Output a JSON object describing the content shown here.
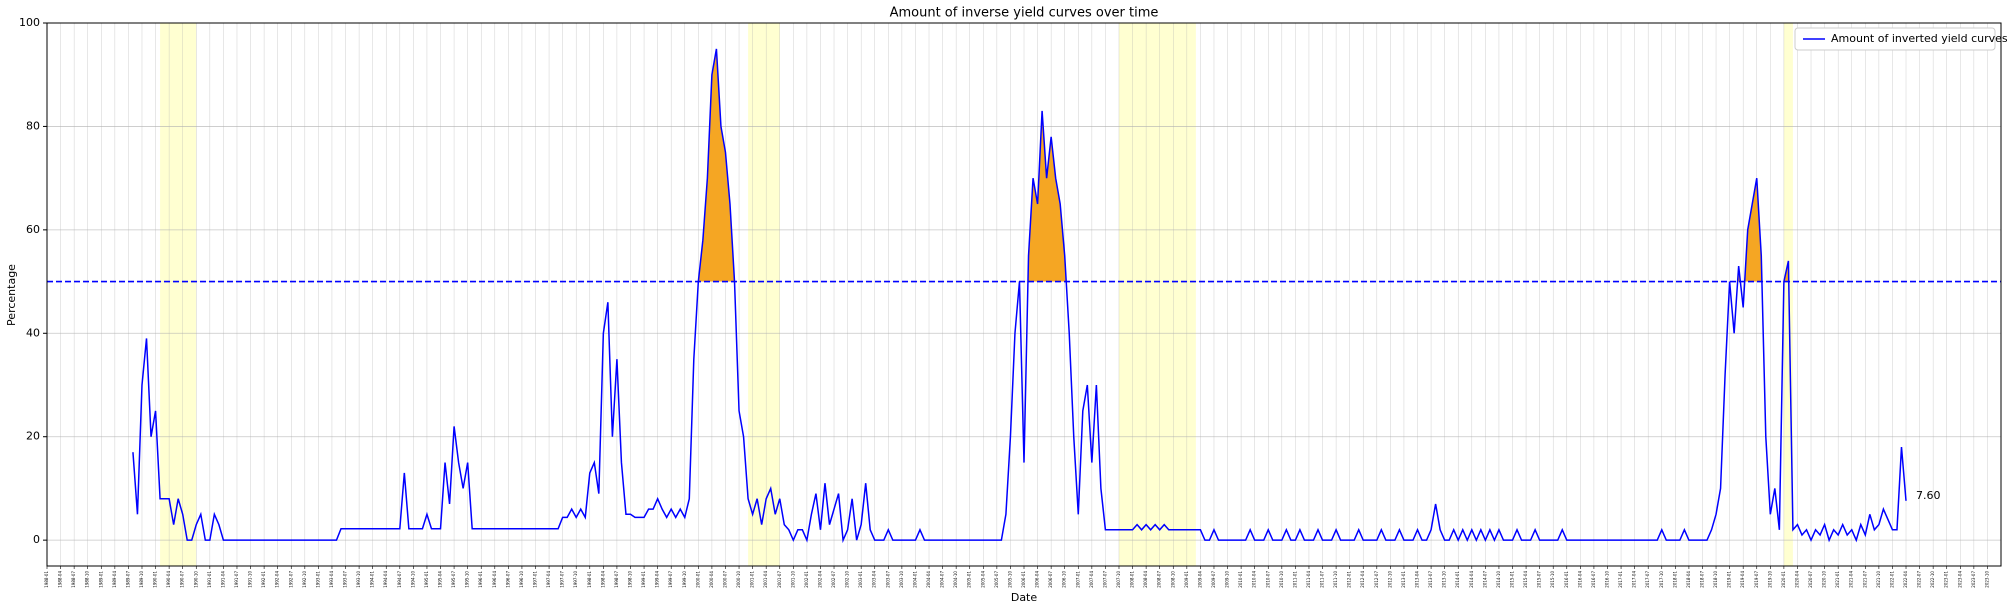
{
  "chart_data": {
    "type": "line",
    "title": "Amount of inverse yield curves over time",
    "xlabel": "Date",
    "ylabel": "Percentage",
    "x": [
      "1989-08",
      "1989-09",
      "1989-10",
      "1989-11",
      "1989-12",
      "1990-01",
      "1990-02",
      "1990-03",
      "1990-04",
      "1990-05",
      "1990-06",
      "1990-07",
      "1990-08",
      "1990-09",
      "1990-10",
      "1990-11",
      "1990-12",
      "1991-01",
      "1991-02",
      "1991-03",
      "1991-04",
      "1991-05",
      "1991-06",
      "1991-07",
      "1991-08",
      "1991-09",
      "1991-10",
      "1991-11",
      "1991-12",
      "1992-01",
      "1992-02",
      "1992-03",
      "1992-04",
      "1992-05",
      "1992-06",
      "1992-07",
      "1992-08",
      "1992-09",
      "1992-10",
      "1992-11",
      "1992-12",
      "1993-01",
      "1993-02",
      "1993-03",
      "1993-04",
      "1993-05",
      "1993-06",
      "1993-07",
      "1993-08",
      "1993-09",
      "1993-10",
      "1993-11",
      "1993-12",
      "1994-01",
      "1994-02",
      "1994-03",
      "1994-04",
      "1994-05",
      "1994-06",
      "1994-07",
      "1994-08",
      "1994-09",
      "1994-10",
      "1994-11",
      "1994-12",
      "1995-01",
      "1995-02",
      "1995-03",
      "1995-04",
      "1995-05",
      "1995-06",
      "1995-07",
      "1995-08",
      "1995-09",
      "1995-10",
      "1995-11",
      "1995-12",
      "1996-01",
      "1996-02",
      "1996-03",
      "1996-04",
      "1996-05",
      "1996-06",
      "1996-07",
      "1996-08",
      "1996-09",
      "1996-10",
      "1996-11",
      "1996-12",
      "1997-01",
      "1997-02",
      "1997-03",
      "1997-04",
      "1997-05",
      "1997-06",
      "1997-07",
      "1997-08",
      "1997-09",
      "1997-10",
      "1997-11",
      "1997-12",
      "1998-01",
      "1998-02",
      "1998-03",
      "1998-04",
      "1998-05",
      "1998-06",
      "1998-07",
      "1998-08",
      "1998-09",
      "1998-10",
      "1998-11",
      "1998-12",
      "1999-01",
      "1999-02",
      "1999-03",
      "1999-04",
      "1999-05",
      "1999-06",
      "1999-07",
      "1999-08",
      "1999-09",
      "1999-10",
      "1999-11",
      "1999-12",
      "2000-01",
      "2000-02",
      "2000-03",
      "2000-04",
      "2000-05",
      "2000-06",
      "2000-07",
      "2000-08",
      "2000-09",
      "2000-10",
      "2000-11",
      "2000-12",
      "2001-01",
      "2001-02",
      "2001-03",
      "2001-04",
      "2001-05",
      "2001-06",
      "2001-07",
      "2001-08",
      "2001-09",
      "2001-10",
      "2001-11",
      "2001-12",
      "2002-01",
      "2002-02",
      "2002-03",
      "2002-04",
      "2002-05",
      "2002-06",
      "2002-07",
      "2002-08",
      "2002-09",
      "2002-10",
      "2002-11",
      "2002-12",
      "2003-01",
      "2003-02",
      "2003-03",
      "2003-04",
      "2003-05",
      "2003-06",
      "2003-07",
      "2003-08",
      "2003-09",
      "2003-10",
      "2003-11",
      "2003-12",
      "2004-01",
      "2004-02",
      "2004-03",
      "2004-04",
      "2004-05",
      "2004-06",
      "2004-07",
      "2004-08",
      "2004-09",
      "2004-10",
      "2004-11",
      "2004-12",
      "2005-01",
      "2005-02",
      "2005-03",
      "2005-04",
      "2005-05",
      "2005-06",
      "2005-07",
      "2005-08",
      "2005-09",
      "2005-10",
      "2005-11",
      "2005-12",
      "2006-01",
      "2006-02",
      "2006-03",
      "2006-04",
      "2006-05",
      "2006-06",
      "2006-07",
      "2006-08",
      "2006-09",
      "2006-10",
      "2006-11",
      "2006-12",
      "2007-01",
      "2007-02",
      "2007-03",
      "2007-04",
      "2007-05",
      "2007-06",
      "2007-07",
      "2007-08",
      "2007-09",
      "2007-10",
      "2007-11",
      "2007-12",
      "2008-01",
      "2008-02",
      "2008-03",
      "2008-04",
      "2008-05",
      "2008-06",
      "2008-07",
      "2008-08",
      "2008-09",
      "2008-10",
      "2008-11",
      "2008-12",
      "2009-01",
      "2009-02",
      "2009-03",
      "2009-04",
      "2009-05",
      "2009-06",
      "2009-07",
      "2009-08",
      "2009-09",
      "2009-10",
      "2009-11",
      "2009-12",
      "2010-01",
      "2010-02",
      "2010-03",
      "2010-04",
      "2010-05",
      "2010-06",
      "2010-07",
      "2010-08",
      "2010-09",
      "2010-10",
      "2010-11",
      "2010-12",
      "2011-01",
      "2011-02",
      "2011-03",
      "2011-04",
      "2011-05",
      "2011-06",
      "2011-07",
      "2011-08",
      "2011-09",
      "2011-10",
      "2011-11",
      "2011-12",
      "2012-01",
      "2012-02",
      "2012-03",
      "2012-04",
      "2012-05",
      "2012-06",
      "2012-07",
      "2012-08",
      "2012-09",
      "2012-10",
      "2012-11",
      "2012-12",
      "2013-01",
      "2013-02",
      "2013-03",
      "2013-04",
      "2013-05",
      "2013-06",
      "2013-07",
      "2013-08",
      "2013-09",
      "2013-10",
      "2013-11",
      "2013-12",
      "2014-01",
      "2014-02",
      "2014-03",
      "2014-04",
      "2014-05",
      "2014-06",
      "2014-07",
      "2014-08",
      "2014-09",
      "2014-10",
      "2014-11",
      "2014-12",
      "2015-01",
      "2015-02",
      "2015-03",
      "2015-04",
      "2015-05",
      "2015-06",
      "2015-07",
      "2015-08",
      "2015-09",
      "2015-10",
      "2015-11",
      "2015-12",
      "2016-01",
      "2016-02",
      "2016-03",
      "2016-04",
      "2016-05",
      "2016-06",
      "2016-07",
      "2016-08",
      "2016-09",
      "2016-10",
      "2016-11",
      "2016-12",
      "2017-01",
      "2017-02",
      "2017-03",
      "2017-04",
      "2017-05",
      "2017-06",
      "2017-07",
      "2017-08",
      "2017-09",
      "2017-10",
      "2017-11",
      "2017-12",
      "2018-01",
      "2018-02",
      "2018-03",
      "2018-04",
      "2018-05",
      "2018-06",
      "2018-07",
      "2018-08",
      "2018-09",
      "2018-10",
      "2018-11",
      "2018-12",
      "2019-01",
      "2019-02",
      "2019-03",
      "2019-04",
      "2019-05",
      "2019-06",
      "2019-07",
      "2019-08",
      "2019-09",
      "2019-10",
      "2019-11",
      "2019-12",
      "2020-01",
      "2020-02",
      "2020-03",
      "2020-04",
      "2020-05",
      "2020-06",
      "2020-07",
      "2020-08",
      "2020-09",
      "2020-10",
      "2020-11",
      "2020-12",
      "2021-01",
      "2021-02",
      "2021-03",
      "2021-04",
      "2021-05",
      "2021-06",
      "2021-07",
      "2021-08",
      "2021-09",
      "2021-10",
      "2021-11",
      "2021-12",
      "2022-01",
      "2022-02",
      "2022-03",
      "2022-04"
    ],
    "series": [
      {
        "name": "Amount of inverted yield curves",
        "color": "#0000ff",
        "values": [
          17,
          5,
          30,
          39,
          20,
          25,
          8,
          8,
          8,
          3,
          8,
          5,
          0,
          0,
          3,
          5,
          0,
          0,
          5,
          3,
          0,
          0,
          0,
          0,
          0,
          0,
          0,
          0,
          0,
          0,
          0,
          0,
          0,
          0,
          0,
          0,
          0,
          0,
          0,
          0,
          0,
          0,
          0,
          0,
          0,
          0,
          2.2,
          2.2,
          2.2,
          2.2,
          2.2,
          2.2,
          2.2,
          2.2,
          2.2,
          2.2,
          2.2,
          2.2,
          2.2,
          2.2,
          13,
          2.2,
          2.2,
          2.2,
          2.2,
          5,
          2.2,
          2.2,
          2.2,
          15,
          7,
          22,
          15,
          10,
          15,
          2.2,
          2.2,
          2.2,
          2.2,
          2.2,
          2.2,
          2.2,
          2.2,
          2.2,
          2.2,
          2.2,
          2.2,
          2.2,
          2.2,
          2.2,
          2.2,
          2.2,
          2.2,
          2.2,
          2.2,
          4.4,
          4.4,
          6,
          4.4,
          6,
          4.4,
          13,
          15,
          9,
          40,
          46,
          20,
          35,
          15,
          5,
          5,
          4.4,
          4.4,
          4.4,
          6,
          6,
          8,
          6,
          4.4,
          6,
          4.4,
          6,
          4.4,
          8,
          35,
          50,
          58,
          70,
          90,
          95,
          80,
          75,
          65,
          50,
          25,
          20,
          8,
          5,
          8,
          3,
          8,
          10,
          5,
          8,
          3,
          2,
          0,
          2,
          2,
          0,
          5,
          9,
          2,
          11,
          3,
          6,
          9,
          0,
          2,
          8,
          0,
          3,
          11,
          2,
          0,
          0,
          0,
          2,
          0,
          0,
          0,
          0,
          0,
          0,
          2,
          0,
          0,
          0,
          0,
          0,
          0,
          0,
          0,
          0,
          0,
          0,
          0,
          0,
          0,
          0,
          0,
          0,
          0,
          5,
          20,
          40,
          50,
          15,
          55,
          70,
          65,
          83,
          70,
          78,
          70,
          65,
          55,
          40,
          20,
          5,
          25,
          30,
          15,
          30,
          10,
          2,
          2,
          2,
          2,
          2,
          2,
          2,
          3,
          2,
          3,
          2,
          3,
          2,
          3,
          2,
          2,
          2,
          2,
          2,
          2,
          2,
          2,
          0,
          0,
          2,
          0,
          0,
          0,
          0,
          0,
          0,
          0,
          2,
          0,
          0,
          0,
          2,
          0,
          0,
          0,
          2,
          0,
          0,
          2,
          0,
          0,
          0,
          2,
          0,
          0,
          0,
          2,
          0,
          0,
          0,
          0,
          2,
          0,
          0,
          0,
          0,
          2,
          0,
          0,
          0,
          2,
          0,
          0,
          0,
          2,
          0,
          0,
          2,
          7,
          2,
          0,
          0,
          2,
          0,
          2,
          0,
          2,
          0,
          2,
          0,
          2,
          0,
          2,
          0,
          0,
          0,
          2,
          0,
          0,
          0,
          2,
          0,
          0,
          0,
          0,
          0,
          2,
          0,
          0,
          0,
          0,
          0,
          0,
          0,
          0,
          0,
          0,
          0,
          0,
          0,
          0,
          0,
          0,
          0,
          0,
          0,
          0,
          0,
          2,
          0,
          0,
          0,
          0,
          2,
          0,
          0,
          0,
          0,
          0,
          2,
          5,
          10,
          32,
          50,
          40,
          53,
          45,
          60,
          65,
          70,
          55,
          20,
          5,
          10,
          2,
          50,
          54,
          2,
          3,
          1,
          2,
          0,
          2,
          1,
          3,
          0,
          2,
          1,
          3,
          1,
          2,
          0,
          3,
          1,
          5,
          2,
          3,
          6,
          4,
          2,
          2,
          18,
          7.6
        ]
      }
    ],
    "xlim": [
      "1988-01",
      "2024-01"
    ],
    "ylim": [
      -5,
      100
    ],
    "xticks": [
      "1988-01",
      "1988-04",
      "1988-07",
      "1988-10",
      "1989-01",
      "1989-04",
      "1989-07",
      "1989-10",
      "1990-01",
      "1990-04",
      "1990-07",
      "1990-10",
      "1991-01",
      "1991-04",
      "1991-07",
      "1991-10",
      "1992-01",
      "1992-04",
      "1992-07",
      "1992-10",
      "1993-01",
      "1993-04",
      "1993-07",
      "1993-10",
      "1994-01",
      "1994-04",
      "1994-07",
      "1994-10",
      "1995-01",
      "1995-04",
      "1995-07",
      "1995-10",
      "1996-01",
      "1996-04",
      "1996-07",
      "1996-10",
      "1997-01",
      "1997-04",
      "1997-07",
      "1997-10",
      "1998-01",
      "1998-04",
      "1998-07",
      "1998-10",
      "1999-01",
      "1999-04",
      "1999-07",
      "1999-10",
      "2000-01",
      "2000-04",
      "2000-07",
      "2000-10",
      "2001-01",
      "2001-04",
      "2001-07",
      "2001-10",
      "2002-01",
      "2002-04",
      "2002-07",
      "2002-10",
      "2003-01",
      "2003-04",
      "2003-07",
      "2003-10",
      "2004-01",
      "2004-04",
      "2004-07",
      "2004-10",
      "2005-01",
      "2005-04",
      "2005-07",
      "2005-10",
      "2006-01",
      "2006-04",
      "2006-07",
      "2006-10",
      "2007-01",
      "2007-04",
      "2007-07",
      "2007-10",
      "2008-01",
      "2008-04",
      "2008-07",
      "2008-10",
      "2009-01",
      "2009-04",
      "2009-07",
      "2009-10",
      "2010-01",
      "2010-04",
      "2010-07",
      "2010-10",
      "2011-01",
      "2011-04",
      "2011-07",
      "2011-10",
      "2012-01",
      "2012-04",
      "2012-07",
      "2012-10",
      "2013-01",
      "2013-04",
      "2013-07",
      "2013-10",
      "2014-01",
      "2014-04",
      "2014-07",
      "2014-10",
      "2015-01",
      "2015-04",
      "2015-07",
      "2015-10",
      "2016-01",
      "2016-04",
      "2016-07",
      "2016-10",
      "2017-01",
      "2017-04",
      "2017-07",
      "2017-10",
      "2018-01",
      "2018-04",
      "2018-07",
      "2018-10",
      "2019-01",
      "2019-04",
      "2019-07",
      "2019-10",
      "2020-01",
      "2020-04",
      "2020-07",
      "2020-10",
      "2021-01",
      "2021-04",
      "2021-07",
      "2021-10",
      "2022-01",
      "2022-04",
      "2022-07",
      "2022-10",
      "2023-01",
      "2023-04",
      "2023-07",
      "2023-10"
    ],
    "yticks": [
      0,
      20,
      40,
      60,
      80,
      100
    ],
    "grid": true,
    "legend": "upper right",
    "threshold": {
      "value": 50,
      "color": "#0000ff",
      "fill_color": "#f5a623"
    },
    "shaded_spans": [
      {
        "start": "1990-02",
        "end": "1990-10"
      },
      {
        "start": "2000-12",
        "end": "2001-07"
      },
      {
        "start": "2007-10",
        "end": "2009-03"
      },
      {
        "start": "2020-01",
        "end": "2020-03"
      }
    ],
    "span_color": "#ffff99",
    "annotations": [
      {
        "x": "2022-04",
        "y": 7.6,
        "label": "7.60"
      }
    ]
  }
}
